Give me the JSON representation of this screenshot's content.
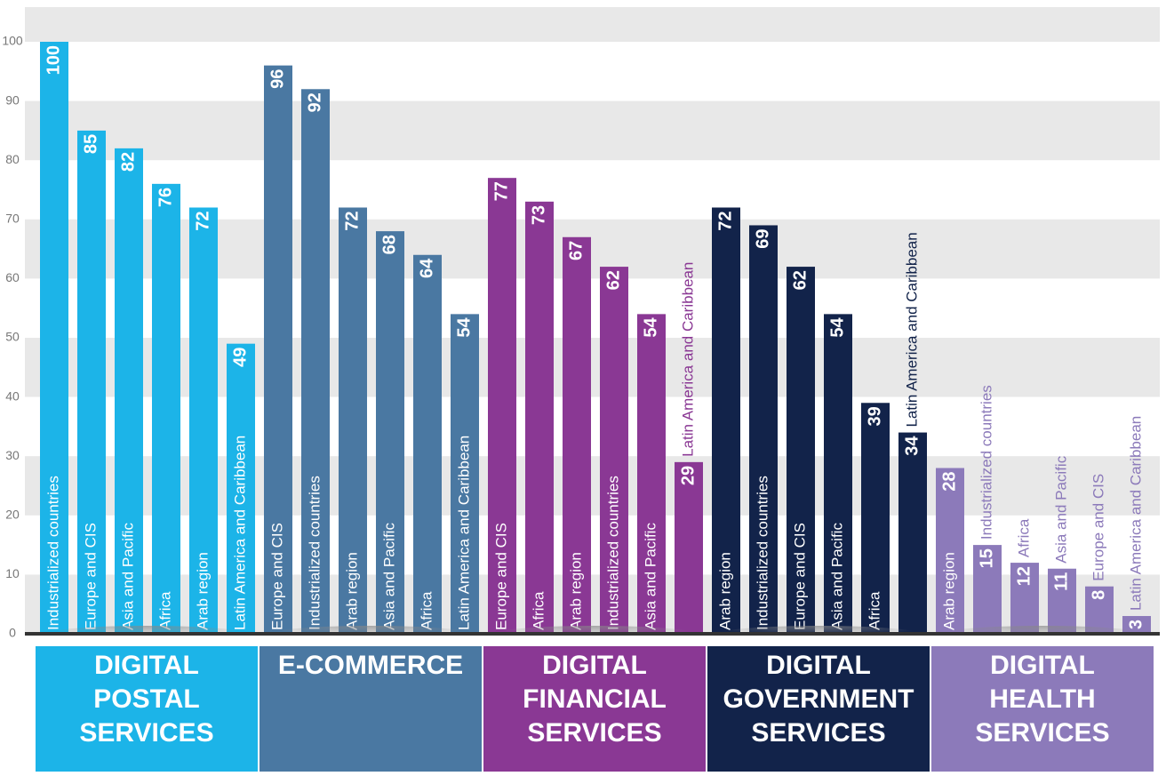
{
  "chart_data": {
    "type": "bar",
    "ylim": [
      0,
      100
    ],
    "yticks": [
      0,
      10,
      20,
      30,
      40,
      50,
      60,
      70,
      80,
      90,
      100
    ],
    "grid": true,
    "groups": [
      {
        "label_lines": [
          "DIGITAL",
          "POSTAL",
          "SERVICES"
        ],
        "color": "#1cb4e8",
        "categories": [
          "Industrialized countries",
          "Europe and CIS",
          "Asia and Pacific",
          "Africa",
          "Arab region",
          "Latin America and Caribbean"
        ],
        "values": [
          100,
          85,
          82,
          76,
          72,
          49
        ]
      },
      {
        "label_lines": [
          "E-COMMERCE"
        ],
        "color": "#4a78a2",
        "categories": [
          "Europe and CIS",
          "Industrialized countries",
          "Arab region",
          "Asia and Pacific",
          "Africa",
          "Latin America and Caribbean"
        ],
        "values": [
          96,
          92,
          72,
          68,
          64,
          54
        ]
      },
      {
        "label_lines": [
          "DIGITAL",
          "FINANCIAL",
          "SERVICES"
        ],
        "color": "#8a3894",
        "categories": [
          "Europe and CIS",
          "Africa",
          "Arab region",
          "Industrialized countries",
          "Asia and Pacific",
          "Latin America and Caribbean"
        ],
        "values": [
          77,
          73,
          67,
          62,
          54,
          29
        ]
      },
      {
        "label_lines": [
          "DIGITAL",
          "GOVERNMENT",
          "SERVICES"
        ],
        "color": "#12234a",
        "categories": [
          "Arab region",
          "Industrialized countries",
          "Europe and CIS",
          "Asia and Pacific",
          "Africa",
          "Latin America and Caribbean"
        ],
        "values": [
          72,
          69,
          62,
          54,
          39,
          34
        ]
      },
      {
        "label_lines": [
          "DIGITAL",
          "HEALTH",
          "SERVICES"
        ],
        "color": "#8c7aba",
        "categories": [
          "Arab region",
          "Industrialized countries",
          "Africa",
          "Asia and Pacific",
          "Europe and CIS",
          "Latin America and Caribbean"
        ],
        "values": [
          28,
          15,
          12,
          11,
          8,
          3
        ]
      }
    ]
  }
}
